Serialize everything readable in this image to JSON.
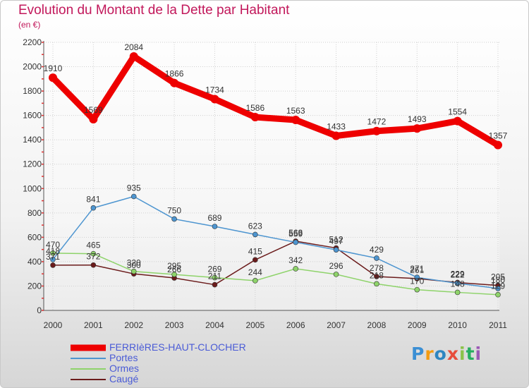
{
  "title": "Evolution du Montant de la Dette par Habitant",
  "subtitle": "(en €)",
  "logo": {
    "text": "Proxiti",
    "letter_colors": [
      "#3b8fd4",
      "#f39c12",
      "#2e86c1",
      "#e74c3c",
      "#8bc34a",
      "#27ae60",
      "#9b59b6"
    ]
  },
  "chart_data": {
    "type": "line",
    "x": [
      "2000",
      "2001",
      "2002",
      "2003",
      "2004",
      "2005",
      "2006",
      "2007",
      "2008",
      "2009",
      "2010",
      "2011"
    ],
    "ylim": [
      0,
      2200
    ],
    "yticks": [
      "0",
      "200",
      "400",
      "600",
      "800",
      "1000",
      "1200",
      "1400",
      "1600",
      "1800",
      "2000",
      "2200"
    ],
    "grid": true,
    "legend_position": "bottom-left",
    "series": [
      {
        "name": "FERRIèRES-HAUT-CLOCHER",
        "color": "#ee0000",
        "values": [
          1910,
          1569,
          2084,
          1866,
          1734,
          1586,
          1563,
          1433,
          1472,
          1493,
          1554,
          1357
        ],
        "labels": [
          "1910",
          "1569",
          "2084",
          "1866",
          "1734",
          "1586",
          "1563",
          "1433",
          "1472",
          "1493",
          "1554",
          "1357"
        ]
      },
      {
        "name": "Portes",
        "color": "#4d95d0",
        "values": [
          418,
          841,
          935,
          750,
          689,
          623,
          559,
          497,
          429,
          271,
          222,
          180
        ],
        "labels": [
          "418",
          "841",
          "935",
          "750",
          "689",
          "623",
          "559",
          "497",
          "429",
          "271",
          "222",
          "180"
        ]
      },
      {
        "name": "Ormes",
        "color": "#8ed36a",
        "values": [
          470,
          465,
          320,
          295,
          269,
          244,
          342,
          296,
          218,
          170,
          148,
          129
        ],
        "labels": [
          "470",
          "465",
          "320",
          "295",
          "269",
          "244",
          "342",
          "296",
          "218",
          "170",
          "148",
          "129"
        ]
      },
      {
        "name": "Caugé",
        "color": "#6b1b1b",
        "values": [
          371,
          372,
          300,
          266,
          211,
          415,
          568,
          512,
          278,
          261,
          229,
          205
        ],
        "labels": [
          "371",
          "372",
          "300",
          "266",
          "211",
          "415",
          "568",
          "512",
          "278",
          "261",
          "229",
          "205"
        ]
      }
    ]
  }
}
